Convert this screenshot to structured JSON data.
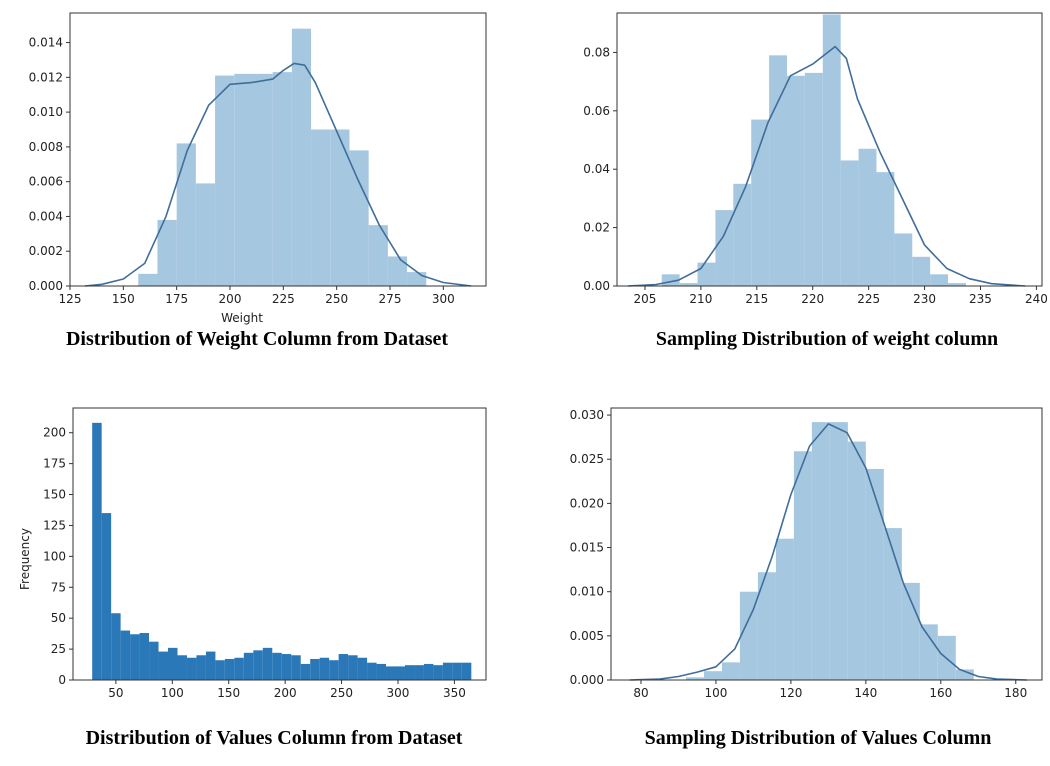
{
  "chart_data": [
    {
      "type": "bar",
      "subtype": "histogram-with-kde",
      "caption": "Distribution of Weight Column from Dataset",
      "xlabel": "Weight",
      "ylabel": "",
      "xlim": [
        125,
        320
      ],
      "ylim": [
        0,
        0.0157
      ],
      "xticks": [
        125,
        150,
        175,
        200,
        225,
        250,
        275,
        300
      ],
      "yticks": [
        0.0,
        0.002,
        0.004,
        0.006,
        0.008,
        0.01,
        0.012,
        0.014
      ],
      "ytick_decimals": 3,
      "bar_color": "#a6c7e0",
      "line_color": "#3f6e9a",
      "bins": [
        {
          "x0": 157,
          "x1": 166,
          "y": 0.0007
        },
        {
          "x0": 166,
          "x1": 175,
          "y": 0.0038
        },
        {
          "x0": 175,
          "x1": 184,
          "y": 0.0082
        },
        {
          "x0": 184,
          "x1": 193,
          "y": 0.0059
        },
        {
          "x0": 193,
          "x1": 202,
          "y": 0.0121
        },
        {
          "x0": 202,
          "x1": 211,
          "y": 0.0122
        },
        {
          "x0": 211,
          "x1": 220,
          "y": 0.0122
        },
        {
          "x0": 220,
          "x1": 229,
          "y": 0.0123
        },
        {
          "x0": 229,
          "x1": 238,
          "y": 0.0148
        },
        {
          "x0": 238,
          "x1": 247,
          "y": 0.009
        },
        {
          "x0": 247,
          "x1": 256,
          "y": 0.009
        },
        {
          "x0": 256,
          "x1": 265,
          "y": 0.0078
        },
        {
          "x0": 265,
          "x1": 274,
          "y": 0.0035
        },
        {
          "x0": 274,
          "x1": 283,
          "y": 0.0017
        },
        {
          "x0": 283,
          "x1": 292,
          "y": 0.0008
        }
      ],
      "kde": [
        [
          132,
          0.0
        ],
        [
          140,
          0.0001
        ],
        [
          150,
          0.0004
        ],
        [
          160,
          0.0013
        ],
        [
          170,
          0.004
        ],
        [
          180,
          0.0078
        ],
        [
          190,
          0.0104
        ],
        [
          200,
          0.0116
        ],
        [
          210,
          0.0117
        ],
        [
          220,
          0.0119
        ],
        [
          225,
          0.0124
        ],
        [
          230,
          0.0128
        ],
        [
          235,
          0.0127
        ],
        [
          240,
          0.0117
        ],
        [
          250,
          0.0089
        ],
        [
          260,
          0.0061
        ],
        [
          270,
          0.0035
        ],
        [
          280,
          0.0015
        ],
        [
          290,
          0.0006
        ],
        [
          300,
          0.0002
        ],
        [
          313,
          0.0
        ]
      ]
    },
    {
      "type": "bar",
      "subtype": "histogram-with-kde",
      "caption": "Sampling Distribution of weight column",
      "xlabel": "",
      "ylabel": "",
      "xlim": [
        202.5,
        240.5
      ],
      "ylim": [
        0,
        0.0935
      ],
      "xticks": [
        205,
        210,
        215,
        220,
        225,
        230,
        235,
        240
      ],
      "yticks": [
        0.0,
        0.02,
        0.04,
        0.06,
        0.08
      ],
      "ytick_decimals": 2,
      "bar_color": "#a6c7e0",
      "line_color": "#3f6e9a",
      "bins": [
        {
          "x0": 206.5,
          "x1": 208.1,
          "y": 0.004
        },
        {
          "x0": 208.1,
          "x1": 209.7,
          "y": 0.001
        },
        {
          "x0": 209.7,
          "x1": 211.3,
          "y": 0.008
        },
        {
          "x0": 211.3,
          "x1": 212.9,
          "y": 0.026
        },
        {
          "x0": 212.9,
          "x1": 214.5,
          "y": 0.035
        },
        {
          "x0": 214.5,
          "x1": 216.1,
          "y": 0.057
        },
        {
          "x0": 216.1,
          "x1": 217.7,
          "y": 0.079
        },
        {
          "x0": 217.7,
          "x1": 219.3,
          "y": 0.072
        },
        {
          "x0": 219.3,
          "x1": 220.9,
          "y": 0.073
        },
        {
          "x0": 220.9,
          "x1": 222.5,
          "y": 0.093
        },
        {
          "x0": 222.5,
          "x1": 224.1,
          "y": 0.043
        },
        {
          "x0": 224.1,
          "x1": 225.7,
          "y": 0.047
        },
        {
          "x0": 225.7,
          "x1": 227.3,
          "y": 0.039
        },
        {
          "x0": 227.3,
          "x1": 228.9,
          "y": 0.018
        },
        {
          "x0": 228.9,
          "x1": 230.5,
          "y": 0.01
        },
        {
          "x0": 230.5,
          "x1": 232.1,
          "y": 0.004
        },
        {
          "x0": 232.1,
          "x1": 233.7,
          "y": 0.001
        }
      ],
      "kde": [
        [
          203.5,
          0.0
        ],
        [
          206,
          0.0005
        ],
        [
          208,
          0.002
        ],
        [
          210,
          0.006
        ],
        [
          212,
          0.017
        ],
        [
          214,
          0.034
        ],
        [
          216,
          0.056
        ],
        [
          218,
          0.072
        ],
        [
          220,
          0.076
        ],
        [
          222,
          0.082
        ],
        [
          223,
          0.078
        ],
        [
          224,
          0.064
        ],
        [
          226,
          0.046
        ],
        [
          228,
          0.03
        ],
        [
          230,
          0.014
        ],
        [
          232,
          0.006
        ],
        [
          234,
          0.0025
        ],
        [
          236,
          0.0008
        ],
        [
          239,
          0.0
        ]
      ]
    },
    {
      "type": "bar",
      "subtype": "histogram",
      "caption": "Distribution of Values Column from Dataset",
      "xlabel": "",
      "ylabel": "Frequency",
      "xlim": [
        12,
        378
      ],
      "ylim": [
        0,
        220
      ],
      "xticks": [
        50,
        100,
        150,
        200,
        250,
        300,
        350
      ],
      "yticks": [
        0,
        25,
        50,
        75,
        100,
        125,
        150,
        175,
        200
      ],
      "ytick_decimals": 0,
      "bar_color": "#2b78b8",
      "bin_start": 29,
      "bin_width": 8.4,
      "counts": [
        208,
        135,
        54,
        40,
        37,
        38,
        31,
        23,
        26,
        20,
        18,
        20,
        23,
        16,
        17,
        18,
        22,
        24,
        26,
        22,
        21,
        20,
        13,
        17,
        18,
        16,
        21,
        20,
        18,
        14,
        13,
        11,
        11,
        12,
        12,
        13,
        12,
        14,
        14,
        14
      ]
    },
    {
      "type": "bar",
      "subtype": "histogram-with-kde",
      "caption": "Sampling Distribution of Values Column",
      "xlabel": "",
      "ylabel": "",
      "xlim": [
        72,
        187
      ],
      "ylim": [
        0,
        0.0308
      ],
      "xticks": [
        80,
        100,
        120,
        140,
        160,
        180
      ],
      "yticks": [
        0.0,
        0.005,
        0.01,
        0.015,
        0.02,
        0.025,
        0.03
      ],
      "ytick_decimals": 3,
      "bar_color": "#a6c7e0",
      "line_color": "#3f6e9a",
      "bins": [
        {
          "x0": 92,
          "x1": 96.8,
          "y": 0.0003
        },
        {
          "x0": 96.8,
          "x1": 101.6,
          "y": 0.001
        },
        {
          "x0": 101.6,
          "x1": 106.4,
          "y": 0.002
        },
        {
          "x0": 106.4,
          "x1": 111.2,
          "y": 0.01
        },
        {
          "x0": 111.2,
          "x1": 116,
          "y": 0.0122
        },
        {
          "x0": 116,
          "x1": 120.8,
          "y": 0.016
        },
        {
          "x0": 120.8,
          "x1": 125.6,
          "y": 0.0259
        },
        {
          "x0": 125.6,
          "x1": 130.4,
          "y": 0.0292
        },
        {
          "x0": 130.4,
          "x1": 135.2,
          "y": 0.0292
        },
        {
          "x0": 135.2,
          "x1": 140,
          "y": 0.027
        },
        {
          "x0": 140,
          "x1": 144.8,
          "y": 0.0239
        },
        {
          "x0": 144.8,
          "x1": 149.6,
          "y": 0.0172
        },
        {
          "x0": 149.6,
          "x1": 154.4,
          "y": 0.011
        },
        {
          "x0": 154.4,
          "x1": 159.2,
          "y": 0.0063
        },
        {
          "x0": 159.2,
          "x1": 164,
          "y": 0.005
        },
        {
          "x0": 164,
          "x1": 168.8,
          "y": 0.0012
        }
      ],
      "kde": [
        [
          77,
          0.0
        ],
        [
          85,
          0.0001
        ],
        [
          90,
          0.0004
        ],
        [
          95,
          0.0009
        ],
        [
          100,
          0.0015
        ],
        [
          105,
          0.0035
        ],
        [
          110,
          0.008
        ],
        [
          115,
          0.014
        ],
        [
          120,
          0.021
        ],
        [
          125,
          0.0265
        ],
        [
          130,
          0.029
        ],
        [
          135,
          0.028
        ],
        [
          140,
          0.024
        ],
        [
          145,
          0.0175
        ],
        [
          150,
          0.011
        ],
        [
          155,
          0.006
        ],
        [
          160,
          0.003
        ],
        [
          165,
          0.0012
        ],
        [
          170,
          0.0004
        ],
        [
          175,
          0.0001
        ],
        [
          183,
          0.0
        ]
      ]
    }
  ]
}
